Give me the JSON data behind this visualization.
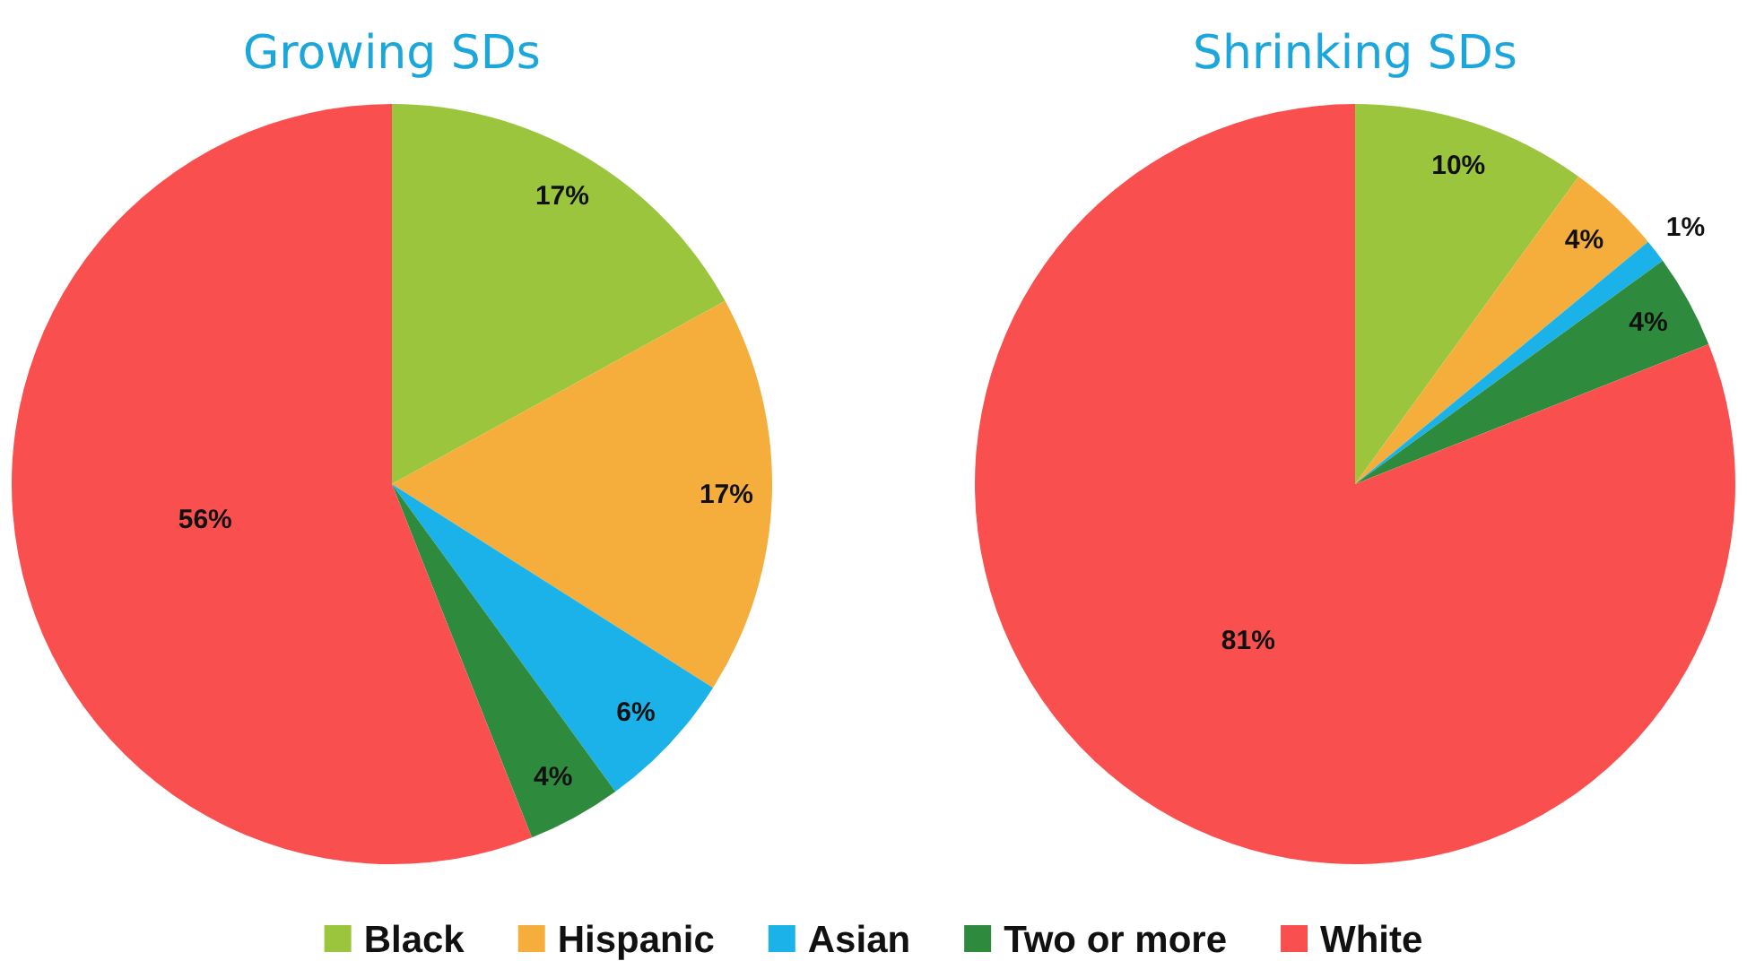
{
  "chart_data": [
    {
      "type": "pie",
      "title": "Growing SDs",
      "categories": [
        "Black",
        "Hispanic",
        "Asian",
        "Two or more",
        "White"
      ],
      "values": [
        17,
        17,
        6,
        4,
        56
      ],
      "value_labels": [
        "17%",
        "17%",
        "6%",
        "4%",
        "56%"
      ],
      "colors": [
        "#9bc53d",
        "#f5ad3c",
        "#1ab2e8",
        "#2e8b3e",
        "#f9504f"
      ],
      "legend": "bottom"
    },
    {
      "type": "pie",
      "title": "Shrinking SDs",
      "categories": [
        null,
        null,
        null,
        null,
        null
      ],
      "values": [
        10,
        4,
        1,
        4,
        81
      ],
      "value_labels": [
        "10%",
        "4%",
        "1%",
        "4%",
        "81%"
      ],
      "colors": [
        "#9bc53d",
        "#f5ad3c",
        "#1ab2e8",
        "#2e8b3e",
        "#f9504f"
      ]
    }
  ]
}
